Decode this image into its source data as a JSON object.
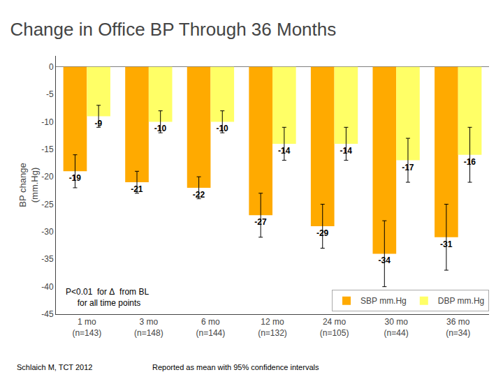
{
  "chart_data": {
    "type": "bar",
    "title": "Change in Office BP Through 36 Months",
    "ylabel": "BP change\n(mm.Hg)",
    "categories": [
      "1 mo\n(n=143)",
      "3 mo\n(n=148)",
      "6 mo\n(n=144)",
      "12 mo\n(n=132)",
      "24 mo\n(n=105)",
      "30 mo\n(n=44)",
      "36 mo\n(n=34)"
    ],
    "series": [
      {
        "name": "SBP mm.Hg",
        "color": "#FFAA00",
        "values": [
          -19,
          -21,
          -22,
          -27,
          -29,
          -34,
          -31
        ],
        "errors": [
          3,
          2,
          2,
          4,
          4,
          6,
          6
        ]
      },
      {
        "name": "DBP mm.Hg",
        "color": "#FFFF66",
        "values": [
          -9,
          -10,
          -10,
          -14,
          -14,
          -17,
          -16
        ],
        "errors": [
          2,
          2,
          2,
          3,
          3,
          4,
          5
        ]
      }
    ],
    "ylim": [
      -45,
      2
    ],
    "yticks": [
      0,
      -5,
      -10,
      -15,
      -20,
      -25,
      -30,
      -35,
      -40,
      -45
    ],
    "annotations": [
      "P<0.01  for Δ  from BL\n     for all time points"
    ],
    "footnotes": [
      "Schlaich M, TCT 2012",
      "Reported as mean with 95% confidence intervals"
    ],
    "data_labels": true,
    "legend": "lower right",
    "grid": false
  }
}
